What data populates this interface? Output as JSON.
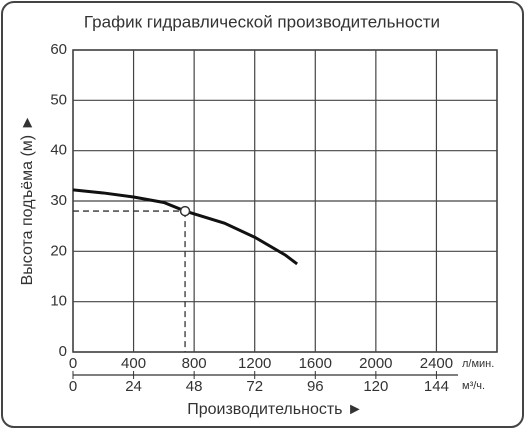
{
  "chart_data": {
    "type": "line",
    "title": "График гидравлической производительности",
    "y_label": "Высота подъёма (м) ►",
    "x_label": "Производительность ►",
    "x_unit": "л/мин.",
    "x2_unit": "м³/ч.",
    "x": [
      0,
      200,
      400,
      600,
      740,
      1000,
      1200,
      1400,
      1480
    ],
    "values": [
      32.2,
      31.6,
      30.8,
      29.7,
      28,
      25.6,
      22.8,
      19.3,
      17.5
    ],
    "color": "#111111",
    "operating_point": {
      "x": 740,
      "y": 28
    },
    "xlim": [
      0,
      2800
    ],
    "xticks": [
      0,
      400,
      800,
      1200,
      1600,
      2000,
      2400
    ],
    "x2lim": [
      0,
      168
    ],
    "x2ticks": [
      0,
      24,
      48,
      72,
      96,
      120,
      144
    ],
    "ylim": [
      0,
      60
    ],
    "yticks": [
      0,
      10,
      20,
      30,
      40,
      50,
      60
    ],
    "grid": true
  }
}
